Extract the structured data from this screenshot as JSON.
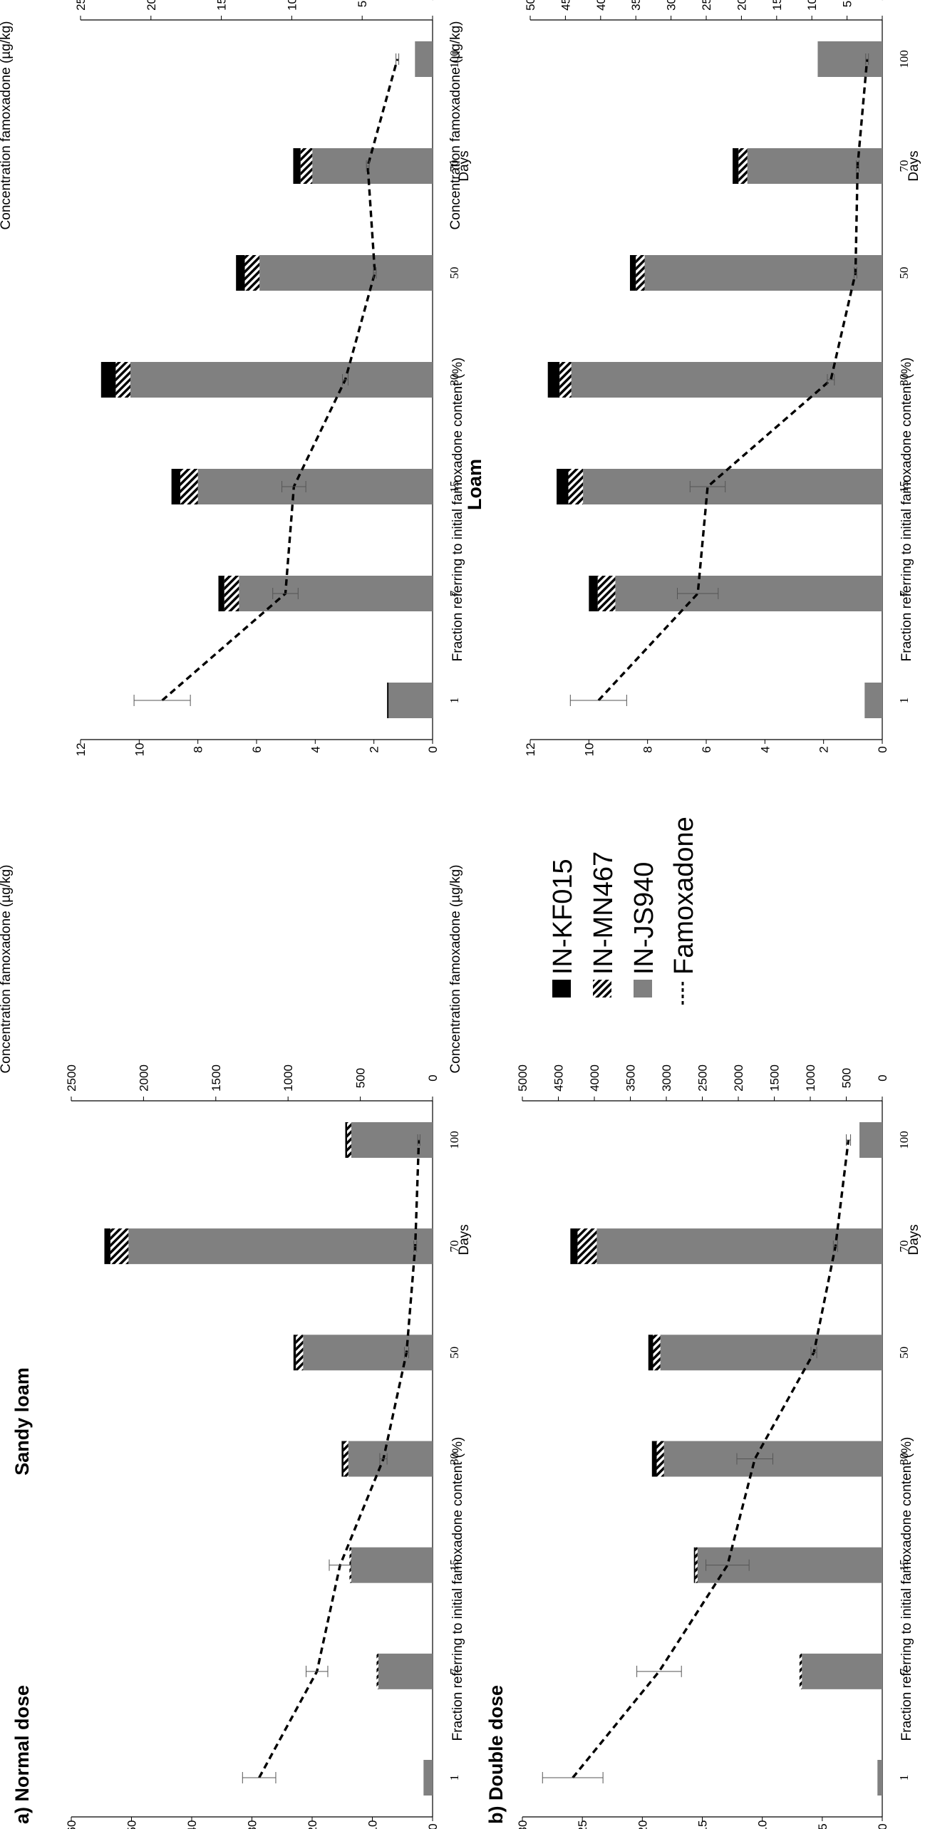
{
  "figure": {
    "columns": [
      "Sandy loam",
      "Loam"
    ],
    "rows": [
      "a) Normal dose",
      "b) Double dose"
    ]
  },
  "legend": [
    {
      "label": "IN-KF015",
      "style": "black"
    },
    {
      "label": "IN-MN467",
      "style": "hatch"
    },
    {
      "label": "IN-JS940",
      "style": "gray"
    },
    {
      "label": "Famoxadone",
      "style": "dashed"
    }
  ],
  "colors": {
    "gray": "#808080",
    "black": "#000000",
    "hatch": "#000000",
    "background": "#ffffff"
  },
  "chart_data": [
    {
      "type": "bar",
      "id": "sandy-normal",
      "title": "Sandy loam",
      "panel_label": "a) Normal dose",
      "xlabel": "Days",
      "ylabel_left": "Fraction referring to initial famoxadone content (%)",
      "ylabel_right": "Concentration famoxadone (µg/kg)",
      "categories": [
        "1",
        "7",
        "15",
        "30",
        "50",
        "70",
        "100"
      ],
      "ylim_left": [
        0,
        60
      ],
      "yticks_left": [
        0,
        10,
        20,
        30,
        40,
        50,
        60
      ],
      "ylim_right": [
        0,
        2500
      ],
      "yticks_right": [
        0,
        500,
        1000,
        1500,
        2000,
        2500
      ],
      "stacked_series": [
        {
          "name": "IN-JS940",
          "style": "gray",
          "values": [
            1.5,
            9,
            13.5,
            14,
            21.5,
            50.5,
            13.5
          ]
        },
        {
          "name": "IN-MN467",
          "style": "hatch",
          "values": [
            0,
            0.3,
            0.3,
            0.8,
            1.2,
            3,
            0.7
          ]
        },
        {
          "name": "IN-KF015",
          "style": "black",
          "values": [
            0,
            0,
            0,
            0.3,
            0.4,
            1,
            0.3
          ]
        }
      ],
      "line_series": {
        "name": "Famoxadone",
        "values": [
          1200,
          800,
          640,
          340,
          180,
          120,
          95
        ],
        "errors": [
          115,
          75,
          75,
          25,
          15,
          10,
          8
        ]
      }
    },
    {
      "type": "bar",
      "id": "loam-normal",
      "title": "Loam",
      "xlabel": "Days",
      "ylabel_left": "Fraction referring to initial famoxadone content (%)",
      "ylabel_right": "Concentration famoxadone (µg/kg)",
      "categories": [
        "1",
        "7",
        "15",
        "30",
        "50",
        "70",
        "100"
      ],
      "ylim_left": [
        0,
        12
      ],
      "yticks_left": [
        0,
        2,
        4,
        6,
        8,
        10,
        12
      ],
      "ylim_right": [
        0,
        2500
      ],
      "yticks_right": [
        0,
        500,
        1000,
        1500,
        2000,
        2500
      ],
      "stacked_series": [
        {
          "name": "IN-JS940",
          "style": "gray",
          "values": [
            1.5,
            6.6,
            8,
            10.3,
            5.9,
            4.1,
            0.6
          ]
        },
        {
          "name": "IN-MN467",
          "style": "hatch",
          "values": [
            0,
            0.5,
            0.6,
            0.5,
            0.5,
            0.4,
            0
          ]
        },
        {
          "name": "IN-KF015",
          "style": "black",
          "values": [
            0.05,
            0.2,
            0.3,
            0.5,
            0.3,
            0.25,
            0
          ]
        },
        {
          "name": "IN-JS940 (100-day top)",
          "style": "none",
          "values": [
            0,
            0,
            0,
            0,
            0,
            0,
            0
          ]
        }
      ],
      "line_series": {
        "name": "Famoxadone",
        "values": [
          1920,
          1045,
          985,
          620,
          410,
          460,
          250
        ],
        "errors": [
          200,
          90,
          85,
          20,
          10,
          10,
          10
        ]
      }
    },
    {
      "type": "bar",
      "id": "sandy-double",
      "title": "Sandy loam",
      "panel_label": "b) Double dose",
      "xlabel": "Days",
      "ylabel_left": "Fraction referring to initial famoxadone content (%)",
      "ylabel_right": "Concentration famoxadone (µg/kg)",
      "categories": [
        "1",
        "7",
        "15",
        "30",
        "50",
        "70",
        "100"
      ],
      "ylim_left": [
        0,
        30
      ],
      "yticks_left": [
        0,
        5,
        10,
        15,
        20,
        25,
        30
      ],
      "ylim_right": [
        0,
        5000
      ],
      "yticks_right": [
        0,
        500,
        1000,
        1500,
        2000,
        2500,
        3000,
        3500,
        4000,
        4500,
        5000
      ],
      "stacked_series": [
        {
          "name": "IN-JS940",
          "style": "gray",
          "values": [
            0.4,
            6.7,
            15.4,
            18.2,
            18.5,
            23.8,
            1.9
          ]
        },
        {
          "name": "IN-MN467",
          "style": "hatch",
          "values": [
            0,
            0.2,
            0.2,
            0.6,
            0.6,
            1.6,
            0
          ]
        },
        {
          "name": "IN-KF015",
          "style": "black",
          "values": [
            0,
            0,
            0.1,
            0.4,
            0.4,
            0.6,
            0
          ]
        }
      ],
      "line_series": {
        "name": "Famoxadone",
        "values": [
          4300,
          3100,
          2150,
          1770,
          950,
          650,
          470
        ],
        "errors": [
          420,
          310,
          300,
          250,
          40,
          30,
          30
        ]
      }
    },
    {
      "type": "bar",
      "id": "loam-double",
      "title": "Loam",
      "xlabel": "Days",
      "ylabel_left": "Fraction referring to initial famoxadone content (%)",
      "ylabel_right": "Concentration famoxadone (µg/kg)",
      "categories": [
        "1",
        "7",
        "15",
        "30",
        "50",
        "70",
        "100"
      ],
      "ylim_left": [
        0,
        12
      ],
      "yticks_left": [
        0,
        2,
        4,
        6,
        8,
        10,
        12
      ],
      "ylim_right": [
        0,
        5000
      ],
      "yticks_right": [
        0,
        500,
        1000,
        1500,
        2000,
        2500,
        3000,
        3500,
        4000,
        4500,
        5000
      ],
      "stacked_series": [
        {
          "name": "IN-JS940",
          "style": "gray",
          "values": [
            0.6,
            9.1,
            10.2,
            10.6,
            8.1,
            4.6,
            2.2
          ]
        },
        {
          "name": "IN-MN467",
          "style": "hatch",
          "values": [
            0,
            0.6,
            0.5,
            0.4,
            0.3,
            0.3,
            0
          ]
        },
        {
          "name": "IN-KF015",
          "style": "black",
          "values": [
            0,
            0.3,
            0.4,
            0.4,
            0.2,
            0.2,
            0
          ]
        }
      ],
      "line_series": {
        "name": "Famoxadone",
        "values": [
          4030,
          2620,
          2480,
          730,
          380,
          350,
          215
        ],
        "errors": [
          400,
          290,
          250,
          50,
          20,
          20,
          20
        ]
      }
    }
  ]
}
